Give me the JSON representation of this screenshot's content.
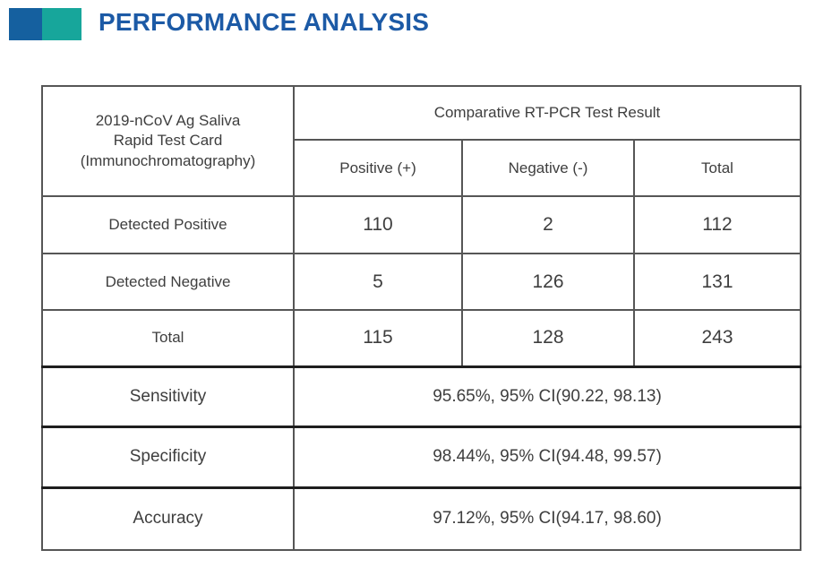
{
  "header": {
    "title": "PERFORMANCE ANALYSIS",
    "title_color": "#1c5aa6",
    "accent_blue": "#15609f",
    "accent_teal": "#17a69b"
  },
  "table": {
    "corner_header": "2019-nCoV Ag Saliva\nRapid Test Card\n(Immunochromatography)",
    "group_header": "Comparative RT-PCR Test Result",
    "columns": [
      "Positive (+)",
      "Negative (-)",
      "Total"
    ],
    "rows": [
      {
        "label": "Detected Positive",
        "values": [
          "110",
          "2",
          "112"
        ]
      },
      {
        "label": "Detected Negative",
        "values": [
          "5",
          "126",
          "131"
        ]
      },
      {
        "label": "Total",
        "values": [
          "115",
          "128",
          "243"
        ]
      }
    ],
    "metrics": [
      {
        "label": "Sensitivity",
        "value": "95.65%, 95% CI(90.22, 98.13)"
      },
      {
        "label": "Specificity",
        "value": "98.44%, 95% CI(94.48, 99.57)"
      },
      {
        "label": "Accuracy",
        "value": "97.12%, 95% CI(94.17, 98.60)"
      }
    ]
  }
}
